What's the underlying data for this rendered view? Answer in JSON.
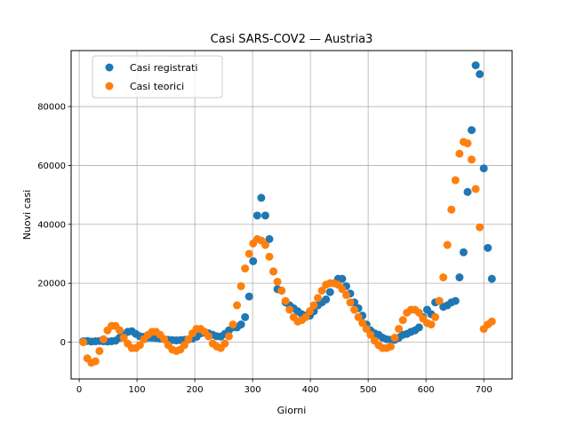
{
  "chart_data": {
    "type": "scatter",
    "title": "Casi SARS-COV2 — Austria3",
    "xlabel": "Giorni",
    "ylabel": "Nuovi casi",
    "xlim": [
      -14,
      749
    ],
    "ylim": [
      -12500,
      99000
    ],
    "xticks": [
      0,
      100,
      200,
      300,
      400,
      500,
      600,
      700
    ],
    "yticks": [
      0,
      20000,
      40000,
      60000,
      80000
    ],
    "grid": true,
    "legend_position": "top-left",
    "colors": {
      "registrati": "#1f77b4",
      "teorici": "#ff7f0e"
    },
    "series": [
      {
        "name": "Casi registrati",
        "color": "#1f77b4",
        "x": [
          7,
          14,
          21,
          28,
          35,
          42,
          49,
          56,
          63,
          70,
          77,
          84,
          91,
          98,
          105,
          112,
          119,
          126,
          133,
          140,
          147,
          154,
          161,
          168,
          175,
          182,
          189,
          196,
          203,
          210,
          217,
          224,
          231,
          238,
          245,
          252,
          259,
          266,
          273,
          280,
          287,
          294,
          301,
          308,
          315,
          322,
          329,
          336,
          343,
          350,
          357,
          364,
          371,
          378,
          385,
          392,
          399,
          406,
          413,
          420,
          427,
          434,
          441,
          448,
          455,
          462,
          469,
          476,
          483,
          490,
          497,
          504,
          511,
          518,
          525,
          532,
          539,
          546,
          553,
          560,
          567,
          574,
          581,
          588,
          595,
          602,
          609,
          616,
          623,
          630,
          637,
          644,
          651,
          658,
          665,
          672,
          679,
          686,
          693,
          700,
          707,
          714
        ],
        "y": [
          300,
          400,
          200,
          300,
          400,
          300,
          200,
          300,
          500,
          1500,
          2500,
          3500,
          3700,
          2800,
          2000,
          1800,
          1500,
          1500,
          1400,
          1200,
          1000,
          800,
          700,
          600,
          700,
          800,
          900,
          1200,
          1800,
          3000,
          3200,
          3000,
          2500,
          2000,
          1900,
          2800,
          4000,
          5000,
          5000,
          6000,
          8500,
          15500,
          27500,
          43000,
          49000,
          43000,
          35000,
          24000,
          18000,
          17500,
          13500,
          12500,
          11500,
          10500,
          9500,
          9000,
          9000,
          10500,
          12500,
          13500,
          14500,
          17000,
          20000,
          21500,
          21500,
          19000,
          16500,
          13500,
          11500,
          9000,
          6000,
          4000,
          3000,
          2500,
          1500,
          1000,
          800,
          800,
          1500,
          2500,
          2800,
          3500,
          4000,
          5000,
          8500,
          11000,
          9500,
          13500,
          14000,
          12000,
          12500,
          13500,
          14000,
          22000,
          30500,
          51000,
          72000,
          94000,
          91000,
          59000,
          32000,
          21500
        ]
      },
      {
        "name": "Casi teorici",
        "color": "#ff7f0e",
        "x": [
          7,
          14,
          21,
          28,
          35,
          42,
          49,
          56,
          63,
          70,
          77,
          84,
          91,
          98,
          105,
          112,
          119,
          126,
          133,
          140,
          147,
          154,
          161,
          168,
          175,
          182,
          189,
          196,
          203,
          210,
          217,
          224,
          231,
          238,
          245,
          252,
          259,
          266,
          273,
          280,
          287,
          294,
          301,
          308,
          315,
          322,
          329,
          336,
          343,
          350,
          357,
          364,
          371,
          378,
          385,
          392,
          399,
          406,
          413,
          420,
          427,
          434,
          441,
          448,
          455,
          462,
          469,
          476,
          483,
          490,
          497,
          504,
          511,
          518,
          525,
          532,
          539,
          546,
          553,
          560,
          567,
          574,
          581,
          588,
          595,
          602,
          609,
          616,
          623,
          630,
          637,
          644,
          651,
          658,
          665,
          672,
          679,
          686,
          693,
          700,
          707,
          714
        ],
        "y": [
          0,
          -5500,
          -7000,
          -6500,
          -3000,
          1000,
          4000,
          5500,
          5500,
          4000,
          1500,
          -500,
          -2000,
          -2000,
          -1000,
          1000,
          2500,
          3500,
          3500,
          2500,
          1000,
          -1000,
          -2500,
          -3000,
          -2500,
          -1000,
          1000,
          3000,
          4500,
          4500,
          3500,
          2000,
          -500,
          -1500,
          -2000,
          -500,
          2000,
          6000,
          12500,
          19000,
          25000,
          30000,
          33500,
          35000,
          34500,
          33000,
          29000,
          24000,
          20500,
          17500,
          14000,
          11000,
          8500,
          7000,
          7500,
          8500,
          10500,
          12500,
          15000,
          17500,
          19500,
          20000,
          20000,
          19500,
          18000,
          16000,
          13500,
          11000,
          8500,
          6500,
          4500,
          2500,
          500,
          -1000,
          -2000,
          -2000,
          -1500,
          1500,
          4500,
          7500,
          10000,
          11000,
          11000,
          10000,
          8000,
          6500,
          6000,
          8500,
          14000,
          22000,
          33000,
          45000,
          55000,
          64000,
          68000,
          67500,
          62000,
          52000,
          39000,
          4500,
          6000,
          7000
        ]
      }
    ]
  }
}
